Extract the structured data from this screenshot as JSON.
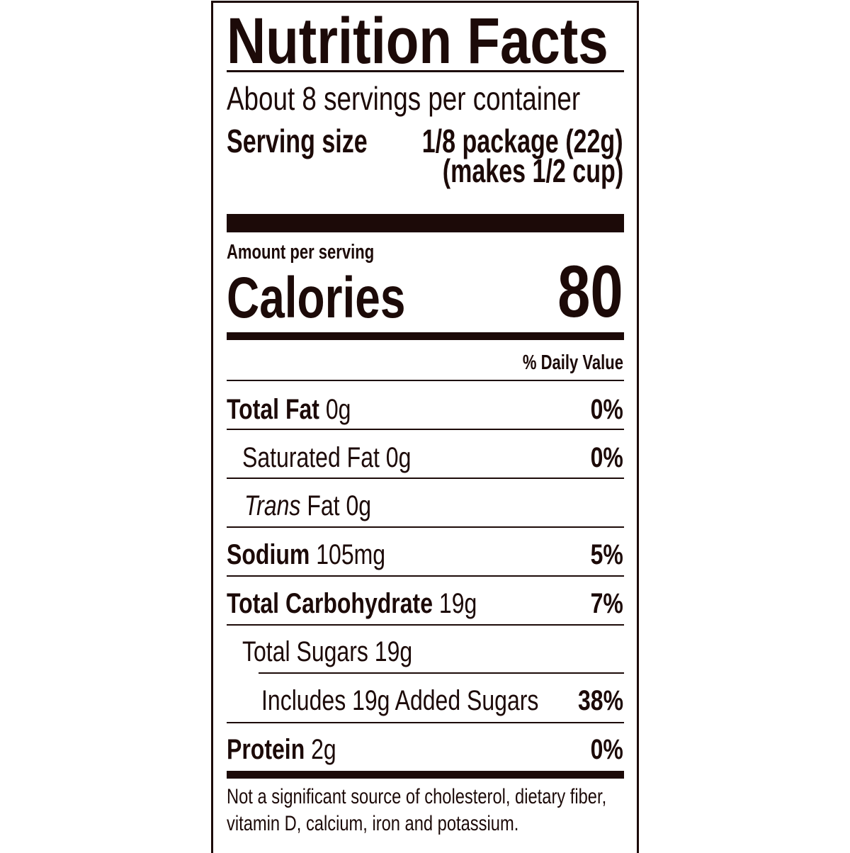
{
  "title": "Nutrition Facts",
  "servings_per_container": "About 8 servings per container",
  "serving_size_label": "Serving size",
  "serving_size_value": "1/8 package (22g)",
  "serving_size_note": "(makes 1/2 cup)",
  "amount_per_serving": "Amount per serving",
  "calories_label": "Calories",
  "calories_value": "80",
  "daily_value_header": "% Daily Value",
  "nutrients": [
    {
      "name": "Total Fat",
      "amount": "0g",
      "dv": "0%"
    },
    {
      "name": "Saturated Fat",
      "amount": "0g",
      "dv": "0%"
    },
    {
      "name_italic": "Trans",
      "name": "Fat",
      "amount": "0g",
      "dv": ""
    },
    {
      "name": "Sodium",
      "amount": "105mg",
      "dv": "5%"
    },
    {
      "name": "Total Carbohydrate",
      "amount": "19g",
      "dv": "7%"
    },
    {
      "name": "Total Sugars",
      "amount": "19g",
      "dv": ""
    },
    {
      "name": "Includes 19g Added Sugars",
      "amount": "",
      "dv": "38%"
    },
    {
      "name": "Protein",
      "amount": "2g",
      "dv": "0%"
    }
  ],
  "footnote_line1": "Not a significant source of cholesterol, dietary fiber,",
  "footnote_line2": "vitamin D, calcium, iron and potassium.",
  "colors": {
    "ink": "#1c0a08",
    "background": "#ffffff"
  }
}
